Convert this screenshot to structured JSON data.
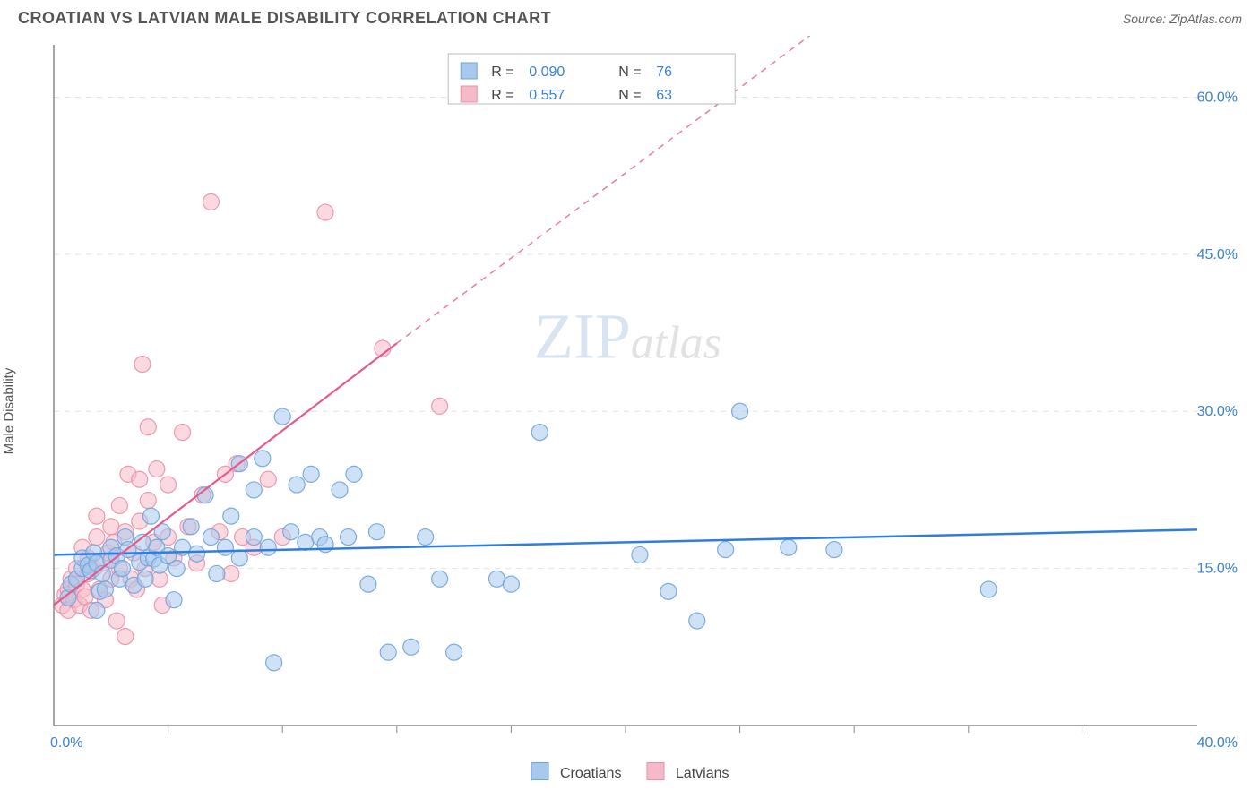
{
  "title": "CROATIAN VS LATVIAN MALE DISABILITY CORRELATION CHART",
  "source": "Source: ZipAtlas.com",
  "ylabel": "Male Disability",
  "watermark": {
    "zip": "ZIP",
    "atlas": "atlas"
  },
  "chart": {
    "type": "scatter",
    "xlim": [
      0,
      40
    ],
    "ylim": [
      0,
      65
    ],
    "x_origin_label": "0.0%",
    "x_end_label": "40.0%",
    "y_ticks": [
      15.0,
      30.0,
      45.0,
      60.0
    ],
    "y_tick_labels": [
      "15.0%",
      "30.0%",
      "45.0%",
      "60.0%"
    ],
    "x_ticks": [
      4,
      8,
      12,
      16,
      20,
      24,
      28,
      32,
      36
    ],
    "background_color": "#ffffff",
    "grid_color": "#cccccc",
    "axis_color": "#888888",
    "axis_label_color": "#3b82d6",
    "marker_radius": 9,
    "marker_opacity": 0.55,
    "series": [
      {
        "name": "Croatians",
        "color_fill": "#a8c8ec",
        "color_stroke": "#6fa3dd",
        "R": "0.090",
        "N": "76",
        "trend": {
          "x1": 0,
          "y1": 16.3,
          "x2": 40,
          "y2": 18.7,
          "color": "#2f7de1",
          "width": 2.5,
          "dash": null
        },
        "points": [
          [
            0.5,
            12.2
          ],
          [
            0.6,
            13.5
          ],
          [
            0.8,
            14.0
          ],
          [
            1.0,
            15.0
          ],
          [
            1.0,
            16.0
          ],
          [
            1.2,
            15.3
          ],
          [
            1.3,
            14.8
          ],
          [
            1.4,
            16.5
          ],
          [
            1.5,
            15.5
          ],
          [
            1.6,
            12.8
          ],
          [
            1.7,
            14.5
          ],
          [
            1.8,
            13.0
          ],
          [
            2.0,
            15.8
          ],
          [
            2.0,
            17.0
          ],
          [
            2.2,
            16.2
          ],
          [
            2.3,
            14.0
          ],
          [
            2.4,
            15.0
          ],
          [
            2.5,
            18.0
          ],
          [
            2.6,
            16.8
          ],
          [
            2.8,
            13.4
          ],
          [
            3.0,
            15.6
          ],
          [
            3.1,
            17.5
          ],
          [
            3.2,
            14.0
          ],
          [
            3.3,
            16.0
          ],
          [
            3.4,
            20.0
          ],
          [
            3.5,
            15.9
          ],
          [
            3.6,
            17.0
          ],
          [
            3.7,
            15.3
          ],
          [
            3.8,
            18.5
          ],
          [
            4.0,
            16.2
          ],
          [
            4.3,
            15.0
          ],
          [
            4.5,
            17.0
          ],
          [
            4.8,
            19.0
          ],
          [
            5.0,
            16.4
          ],
          [
            5.3,
            22.0
          ],
          [
            5.5,
            18.0
          ],
          [
            5.7,
            14.5
          ],
          [
            6.0,
            17.0
          ],
          [
            6.2,
            20.0
          ],
          [
            6.5,
            25.0
          ],
          [
            6.5,
            16.0
          ],
          [
            7.0,
            18.0
          ],
          [
            7.0,
            22.5
          ],
          [
            7.3,
            25.5
          ],
          [
            7.5,
            17.0
          ],
          [
            7.7,
            6.0
          ],
          [
            8.0,
            29.5
          ],
          [
            8.3,
            18.5
          ],
          [
            8.5,
            23.0
          ],
          [
            8.8,
            17.5
          ],
          [
            9.0,
            24.0
          ],
          [
            9.3,
            18.0
          ],
          [
            9.5,
            17.3
          ],
          [
            10.0,
            22.5
          ],
          [
            10.3,
            18.0
          ],
          [
            10.5,
            24.0
          ],
          [
            11.0,
            13.5
          ],
          [
            11.3,
            18.5
          ],
          [
            11.7,
            7.0
          ],
          [
            12.5,
            7.5
          ],
          [
            13.0,
            18.0
          ],
          [
            13.5,
            14.0
          ],
          [
            14.0,
            7.0
          ],
          [
            15.5,
            14.0
          ],
          [
            16.0,
            13.5
          ],
          [
            17.0,
            28.0
          ],
          [
            20.5,
            16.3
          ],
          [
            21.5,
            12.8
          ],
          [
            22.5,
            10.0
          ],
          [
            23.5,
            16.8
          ],
          [
            24.0,
            30.0
          ],
          [
            25.7,
            17.0
          ],
          [
            27.3,
            16.8
          ],
          [
            32.7,
            13.0
          ],
          [
            1.5,
            11.0
          ],
          [
            4.2,
            12.0
          ]
        ]
      },
      {
        "name": "Latvians",
        "color_fill": "#f5b9c8",
        "color_stroke": "#ec8fa8",
        "R": "0.557",
        "N": "63",
        "trend": {
          "x1": 0,
          "y1": 11.5,
          "x2": 12,
          "y2": 36.5,
          "color": "#e75a8a",
          "width": 2.2,
          "dash": null,
          "ext_x2": 27.0,
          "ext_y2": 67.0,
          "ext_dash": "7 6"
        },
        "points": [
          [
            0.3,
            11.5
          ],
          [
            0.4,
            12.5
          ],
          [
            0.5,
            13.0
          ],
          [
            0.5,
            11.0
          ],
          [
            0.6,
            14.0
          ],
          [
            0.7,
            12.0
          ],
          [
            0.8,
            13.5
          ],
          [
            0.8,
            15.0
          ],
          [
            0.9,
            11.5
          ],
          [
            1.0,
            13.0
          ],
          [
            1.0,
            17.0
          ],
          [
            1.1,
            12.3
          ],
          [
            1.2,
            14.5
          ],
          [
            1.2,
            16.0
          ],
          [
            1.3,
            11.0
          ],
          [
            1.4,
            15.0
          ],
          [
            1.5,
            18.0
          ],
          [
            1.5,
            20.0
          ],
          [
            1.6,
            13.0
          ],
          [
            1.7,
            15.5
          ],
          [
            1.8,
            12.0
          ],
          [
            1.9,
            16.5
          ],
          [
            2.0,
            19.0
          ],
          [
            2.0,
            14.0
          ],
          [
            2.1,
            17.5
          ],
          [
            2.2,
            10.0
          ],
          [
            2.3,
            21.0
          ],
          [
            2.3,
            15.0
          ],
          [
            2.5,
            8.5
          ],
          [
            2.5,
            18.5
          ],
          [
            2.6,
            24.0
          ],
          [
            2.7,
            14.0
          ],
          [
            2.8,
            16.5
          ],
          [
            2.9,
            13.0
          ],
          [
            3.0,
            19.5
          ],
          [
            3.0,
            23.5
          ],
          [
            3.1,
            34.5
          ],
          [
            3.2,
            15.0
          ],
          [
            3.3,
            21.5
          ],
          [
            3.3,
            28.5
          ],
          [
            3.5,
            17.5
          ],
          [
            3.6,
            24.5
          ],
          [
            3.7,
            14.0
          ],
          [
            3.8,
            11.5
          ],
          [
            4.0,
            18.0
          ],
          [
            4.0,
            23.0
          ],
          [
            4.2,
            16.0
          ],
          [
            4.5,
            28.0
          ],
          [
            4.7,
            19.0
          ],
          [
            5.0,
            15.5
          ],
          [
            5.2,
            22.0
          ],
          [
            5.5,
            50.0
          ],
          [
            5.8,
            18.5
          ],
          [
            6.0,
            24.0
          ],
          [
            6.2,
            14.5
          ],
          [
            6.4,
            25.0
          ],
          [
            6.6,
            18.0
          ],
          [
            7.0,
            17.0
          ],
          [
            7.5,
            23.5
          ],
          [
            8.0,
            18.0
          ],
          [
            9.5,
            49.0
          ],
          [
            11.5,
            36.0
          ],
          [
            13.5,
            30.5
          ]
        ]
      }
    ],
    "legend_top": {
      "rows": [
        {
          "swatch": 0,
          "r_label": "R =",
          "n_label": "N ="
        },
        {
          "swatch": 1,
          "r_label": "R =",
          "n_label": "N ="
        }
      ]
    }
  }
}
